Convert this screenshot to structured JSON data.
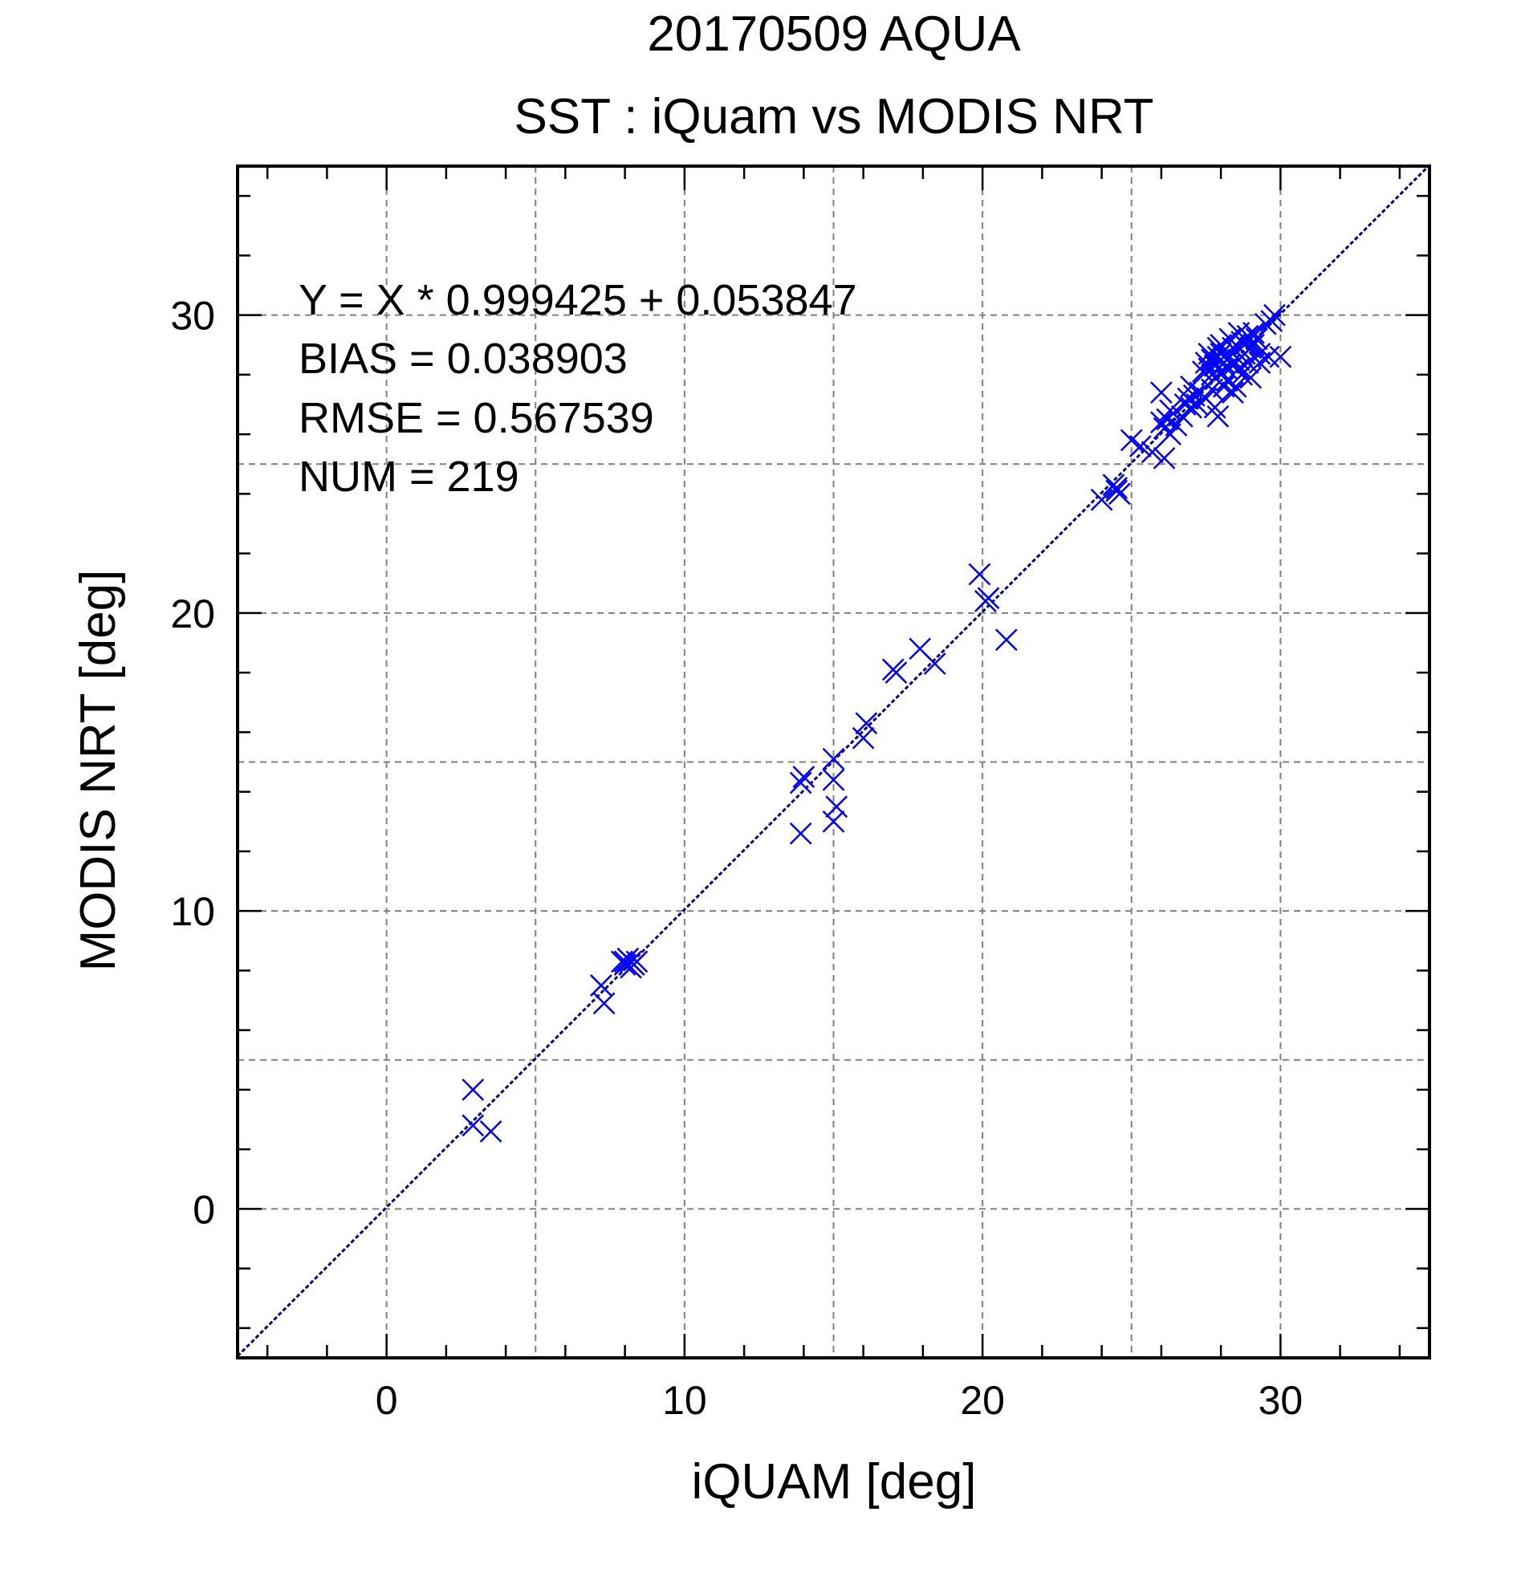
{
  "chart_data": {
    "type": "scatter",
    "title": "20170509 AQUA",
    "subtitle": "SST : iQuam vs MODIS NRT",
    "xlabel": "iQUAM [deg]",
    "ylabel": "MODIS NRT [deg]",
    "xlim": [
      -5,
      35
    ],
    "ylim": [
      -5,
      35
    ],
    "xticks": [
      0,
      10,
      20,
      30
    ],
    "yticks": [
      0,
      10,
      20,
      30
    ],
    "xtick_labels": [
      "0",
      "10",
      "20",
      "30"
    ],
    "ytick_labels": [
      "0",
      "10",
      "20",
      "30"
    ],
    "grid": true,
    "marker": "x",
    "colors": {
      "points": "#0000ff",
      "fit_line": "#000080",
      "grid": "#808080",
      "frame": "#000000"
    },
    "stats": {
      "equation": "Y = X * 0.999425 + 0.053847",
      "bias": "BIAS = 0.038903",
      "rmse": "RMSE = 0.567539",
      "num": "NUM = 219"
    },
    "fit": {
      "slope": 0.999425,
      "intercept": 0.053847
    },
    "points": [
      [
        2.9,
        4.0
      ],
      [
        2.9,
        2.8
      ],
      [
        3.5,
        2.6
      ],
      [
        7.2,
        7.5
      ],
      [
        7.3,
        6.9
      ],
      [
        7.9,
        8.3
      ],
      [
        8.0,
        8.2
      ],
      [
        8.1,
        8.4
      ],
      [
        8.2,
        8.3
      ],
      [
        8.3,
        8.2
      ],
      [
        8.4,
        8.3
      ],
      [
        8.2,
        8.1
      ],
      [
        8.0,
        8.3
      ],
      [
        13.9,
        14.3
      ],
      [
        14.0,
        14.5
      ],
      [
        13.9,
        12.6
      ],
      [
        15.0,
        15.1
      ],
      [
        15.0,
        14.4
      ],
      [
        15.1,
        13.5
      ],
      [
        15.0,
        13.0
      ],
      [
        16.0,
        15.8
      ],
      [
        16.1,
        16.3
      ],
      [
        17.0,
        18.1
      ],
      [
        17.1,
        18.0
      ],
      [
        17.9,
        18.8
      ],
      [
        18.4,
        18.3
      ],
      [
        19.9,
        21.3
      ],
      [
        20.2,
        20.5
      ],
      [
        20.1,
        20.4
      ],
      [
        20.8,
        19.1
      ],
      [
        24.0,
        23.8
      ],
      [
        24.4,
        24.3
      ],
      [
        24.5,
        24.1
      ],
      [
        24.5,
        24.2
      ],
      [
        24.6,
        24.0
      ],
      [
        25.0,
        25.8
      ],
      [
        25.3,
        25.6
      ],
      [
        25.7,
        25.4
      ],
      [
        26.0,
        26.4
      ],
      [
        26.1,
        26.2
      ],
      [
        26.2,
        26.5
      ],
      [
        26.0,
        27.4
      ],
      [
        26.3,
        26.0
      ],
      [
        26.1,
        25.2
      ],
      [
        26.5,
        26.3
      ],
      [
        26.3,
        26.8
      ],
      [
        26.7,
        26.6
      ],
      [
        26.8,
        27.0
      ],
      [
        27.0,
        26.9
      ],
      [
        27.1,
        27.3
      ],
      [
        27.2,
        27.0
      ],
      [
        27.3,
        27.4
      ],
      [
        26.9,
        27.2
      ],
      [
        27.0,
        27.6
      ],
      [
        27.4,
        28.1
      ],
      [
        27.5,
        28.4
      ],
      [
        27.6,
        28.2
      ],
      [
        27.7,
        28.5
      ],
      [
        27.8,
        28.3
      ],
      [
        27.9,
        28.6
      ],
      [
        27.6,
        28.7
      ],
      [
        27.7,
        28.0
      ],
      [
        27.8,
        26.9
      ],
      [
        27.9,
        26.6
      ],
      [
        28.0,
        28.1
      ],
      [
        28.1,
        28.4
      ],
      [
        28.2,
        28.2
      ],
      [
        28.3,
        28.6
      ],
      [
        28.4,
        28.3
      ],
      [
        28.5,
        28.8
      ],
      [
        28.6,
        28.5
      ],
      [
        28.7,
        29.1
      ],
      [
        28.8,
        28.7
      ],
      [
        28.9,
        29.3
      ],
      [
        29.0,
        28.9
      ],
      [
        29.1,
        29.0
      ],
      [
        29.2,
        29.2
      ],
      [
        29.3,
        28.7
      ],
      [
        28.2,
        27.8
      ],
      [
        28.4,
        27.4
      ],
      [
        28.5,
        27.6
      ],
      [
        28.6,
        28.2
      ],
      [
        28.7,
        28.0
      ],
      [
        28.9,
        28.4
      ],
      [
        29.0,
        27.9
      ],
      [
        29.3,
        28.4
      ],
      [
        29.5,
        29.7
      ],
      [
        29.7,
        29.8
      ],
      [
        29.8,
        30.0
      ],
      [
        30.0,
        28.6
      ],
      [
        29.6,
        28.6
      ],
      [
        28.0,
        29.0
      ],
      [
        28.3,
        29.2
      ],
      [
        28.6,
        29.4
      ],
      [
        27.5,
        27.2
      ],
      [
        27.7,
        27.5
      ],
      [
        28.1,
        27.6
      ],
      [
        28.8,
        29.0
      ],
      [
        29.1,
        29.4
      ],
      [
        28.4,
        28.9
      ],
      [
        28.0,
        28.7
      ],
      [
        27.9,
        28.9
      ]
    ]
  }
}
